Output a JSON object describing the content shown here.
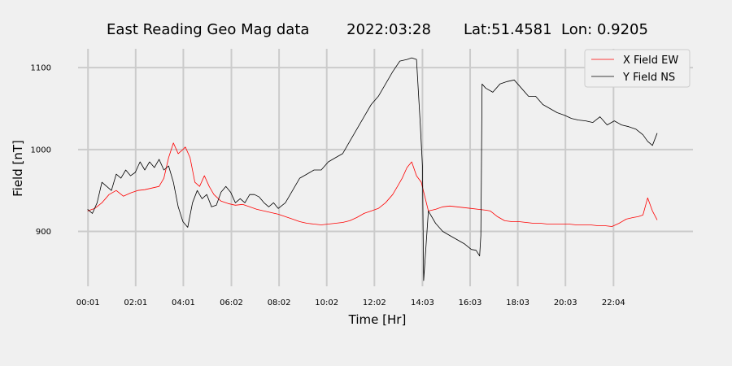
{
  "chart_data": {
    "type": "line",
    "title": "East Reading Geo Mag data        2022:03:28       Lat:51.4581  Lon: 0.9205",
    "xlabel": "Time  [Hr]",
    "ylabel": "Field  [nT]",
    "xlim": [
      -0.4,
      25.4
    ],
    "ylim": [
      833,
      1123
    ],
    "grid": true,
    "legend_position": "top-right",
    "x_ticks": [
      0.0167,
      2.0167,
      4.0167,
      6.0333,
      8.0333,
      10.0333,
      12.0333,
      14.05,
      16.05,
      18.05,
      20.05,
      22.0667
    ],
    "x_tick_labels": [
      "00:01",
      "02:01",
      "04:01",
      "06:02",
      "08:02",
      "10:02",
      "12:02",
      "14:03",
      "16:03",
      "18:03",
      "20:03",
      "22:04"
    ],
    "y_ticks": [
      900,
      1000,
      1100
    ],
    "y_tick_labels": [
      "900",
      "1000",
      "1100"
    ],
    "series": [
      {
        "name": "X Field EW",
        "color": "#ff0000",
        "x": [
          0.0,
          0.3,
          0.6,
          0.9,
          1.2,
          1.5,
          1.8,
          2.1,
          2.4,
          2.7,
          3.0,
          3.2,
          3.4,
          3.6,
          3.8,
          4.0,
          4.1,
          4.3,
          4.5,
          4.7,
          4.9,
          5.1,
          5.3,
          5.6,
          5.9,
          6.2,
          6.5,
          6.8,
          7.1,
          7.4,
          7.7,
          8.0,
          8.3,
          8.6,
          8.9,
          9.2,
          9.5,
          9.8,
          10.1,
          10.4,
          10.7,
          11.0,
          11.3,
          11.6,
          11.9,
          12.2,
          12.5,
          12.8,
          13.0,
          13.2,
          13.4,
          13.6,
          13.8,
          14.0,
          14.3,
          14.6,
          14.9,
          15.2,
          15.5,
          15.8,
          16.1,
          16.4,
          16.7,
          16.9,
          17.2,
          17.5,
          17.8,
          18.1,
          18.4,
          18.7,
          19.0,
          19.3,
          19.6,
          19.9,
          20.2,
          20.5,
          20.8,
          21.1,
          21.4,
          21.7,
          22.0,
          22.3,
          22.6,
          22.9,
          23.1,
          23.3,
          23.5,
          23.7,
          23.9
        ],
        "values": [
          925,
          928,
          935,
          945,
          950,
          943,
          947,
          950,
          951,
          953,
          955,
          965,
          990,
          1008,
          995,
          1000,
          1003,
          990,
          960,
          955,
          968,
          955,
          945,
          937,
          934,
          932,
          933,
          930,
          927,
          925,
          923,
          921,
          918,
          915,
          912,
          910,
          909,
          908,
          909,
          910,
          911,
          913,
          917,
          922,
          925,
          928,
          935,
          945,
          955,
          965,
          978,
          985,
          968,
          960,
          925,
          927,
          930,
          931,
          930,
          929,
          928,
          927,
          926,
          925,
          918,
          913,
          912,
          912,
          911,
          910,
          910,
          909,
          909,
          909,
          909,
          908,
          908,
          908,
          907,
          907,
          906,
          910,
          915,
          917,
          918,
          920,
          941,
          925,
          914
        ]
      },
      {
        "name": "Y Field NS",
        "color": "#000000",
        "x": [
          0.0,
          0.2,
          0.4,
          0.6,
          0.8,
          1.0,
          1.2,
          1.4,
          1.6,
          1.8,
          2.0,
          2.2,
          2.4,
          2.6,
          2.8,
          3.0,
          3.2,
          3.4,
          3.6,
          3.8,
          4.0,
          4.2,
          4.4,
          4.6,
          4.8,
          5.0,
          5.2,
          5.4,
          5.6,
          5.8,
          6.0,
          6.2,
          6.4,
          6.6,
          6.8,
          7.0,
          7.2,
          7.4,
          7.6,
          7.8,
          8.0,
          8.3,
          8.6,
          8.9,
          9.2,
          9.5,
          9.8,
          10.1,
          10.4,
          10.7,
          11.0,
          11.3,
          11.6,
          11.9,
          12.2,
          12.5,
          12.8,
          13.1,
          13.4,
          13.6,
          13.8,
          13.95,
          14.05,
          14.1,
          14.3,
          14.6,
          14.9,
          15.2,
          15.5,
          15.8,
          16.1,
          16.3,
          16.45,
          16.5,
          16.52,
          16.55,
          16.7,
          17.0,
          17.3,
          17.6,
          17.9,
          18.2,
          18.5,
          18.8,
          19.1,
          19.4,
          19.7,
          20.0,
          20.3,
          20.6,
          20.9,
          21.2,
          21.5,
          21.8,
          22.1,
          22.4,
          22.7,
          23.0,
          23.3,
          23.5,
          23.7,
          23.9
        ],
        "values": [
          927,
          922,
          935,
          960,
          955,
          950,
          970,
          965,
          975,
          968,
          972,
          985,
          975,
          985,
          978,
          988,
          975,
          980,
          960,
          930,
          912,
          905,
          935,
          950,
          940,
          945,
          930,
          932,
          948,
          955,
          948,
          935,
          940,
          935,
          945,
          945,
          942,
          935,
          930,
          935,
          928,
          935,
          950,
          965,
          970,
          975,
          975,
          985,
          990,
          995,
          1010,
          1025,
          1040,
          1055,
          1065,
          1080,
          1095,
          1108,
          1110,
          1112,
          1110,
          1035,
          980,
          840,
          925,
          910,
          900,
          895,
          890,
          885,
          878,
          877,
          870,
          895,
          960,
          1080,
          1075,
          1070,
          1080,
          1083,
          1085,
          1075,
          1065,
          1065,
          1055,
          1050,
          1045,
          1042,
          1038,
          1036,
          1035,
          1033,
          1040,
          1030,
          1035,
          1030,
          1028,
          1025,
          1018,
          1010,
          1005,
          1020
        ]
      }
    ]
  }
}
